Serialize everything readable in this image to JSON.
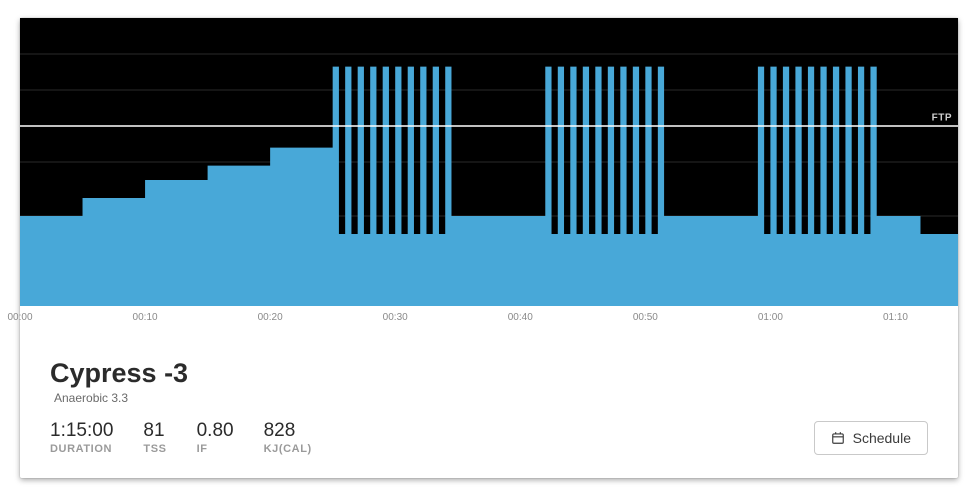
{
  "workout": {
    "title": "Cypress -3",
    "subtitle": "Anaerobic 3.3",
    "stats": [
      {
        "value": "1:15:00",
        "label": "DURATION"
      },
      {
        "value": "81",
        "label": "TSS"
      },
      {
        "value": "0.80",
        "label": "IF"
      },
      {
        "value": "828",
        "label": "KJ(CAL)"
      }
    ]
  },
  "actions": {
    "schedule_label": "Schedule"
  },
  "chart": {
    "type": "step-area-intervals",
    "duration_min": 75,
    "ftp_label": "FTP",
    "ftp_pct": 100,
    "y_range_pct": [
      0,
      160
    ],
    "gridlines_pct": [
      50,
      80,
      100,
      120,
      140
    ],
    "axis_ticks_min": [
      0,
      10,
      20,
      30,
      40,
      50,
      60,
      70
    ],
    "axis_tick_labels": [
      "00:00",
      "00:10",
      "00:20",
      "00:30",
      "00:40",
      "00:50",
      "01:00",
      "01:10"
    ],
    "colors": {
      "background": "#000000",
      "area_fill": "#48a8d8",
      "gridline": "#2a2a2a",
      "ftp_line": "#ffffff",
      "axis_text": "#8a8a8a",
      "ftp_text": "#cfcfcf"
    },
    "steps": [
      {
        "start_min": 0,
        "end_min": 5,
        "pct": 50
      },
      {
        "start_min": 5,
        "end_min": 10,
        "pct": 60
      },
      {
        "start_min": 10,
        "end_min": 15,
        "pct": 70
      },
      {
        "start_min": 15,
        "end_min": 20,
        "pct": 78
      },
      {
        "start_min": 20,
        "end_min": 25,
        "pct": 88
      },
      {
        "start_min": 25.0,
        "end_min": 25.5,
        "pct": 133
      },
      {
        "start_min": 25.5,
        "end_min": 26.0,
        "pct": 40
      },
      {
        "start_min": 26.0,
        "end_min": 26.5,
        "pct": 133
      },
      {
        "start_min": 26.5,
        "end_min": 27.0,
        "pct": 40
      },
      {
        "start_min": 27.0,
        "end_min": 27.5,
        "pct": 133
      },
      {
        "start_min": 27.5,
        "end_min": 28.0,
        "pct": 40
      },
      {
        "start_min": 28.0,
        "end_min": 28.5,
        "pct": 133
      },
      {
        "start_min": 28.5,
        "end_min": 29.0,
        "pct": 40
      },
      {
        "start_min": 29.0,
        "end_min": 29.5,
        "pct": 133
      },
      {
        "start_min": 29.5,
        "end_min": 30.0,
        "pct": 40
      },
      {
        "start_min": 30.0,
        "end_min": 30.5,
        "pct": 133
      },
      {
        "start_min": 30.5,
        "end_min": 31.0,
        "pct": 40
      },
      {
        "start_min": 31.0,
        "end_min": 31.5,
        "pct": 133
      },
      {
        "start_min": 31.5,
        "end_min": 32.0,
        "pct": 40
      },
      {
        "start_min": 32.0,
        "end_min": 32.5,
        "pct": 133
      },
      {
        "start_min": 32.5,
        "end_min": 33.0,
        "pct": 40
      },
      {
        "start_min": 33.0,
        "end_min": 33.5,
        "pct": 133
      },
      {
        "start_min": 33.5,
        "end_min": 34.0,
        "pct": 40
      },
      {
        "start_min": 34.0,
        "end_min": 34.5,
        "pct": 133
      },
      {
        "start_min": 34.5,
        "end_min": 42.0,
        "pct": 50
      },
      {
        "start_min": 42.0,
        "end_min": 42.5,
        "pct": 133
      },
      {
        "start_min": 42.5,
        "end_min": 43.0,
        "pct": 40
      },
      {
        "start_min": 43.0,
        "end_min": 43.5,
        "pct": 133
      },
      {
        "start_min": 43.5,
        "end_min": 44.0,
        "pct": 40
      },
      {
        "start_min": 44.0,
        "end_min": 44.5,
        "pct": 133
      },
      {
        "start_min": 44.5,
        "end_min": 45.0,
        "pct": 40
      },
      {
        "start_min": 45.0,
        "end_min": 45.5,
        "pct": 133
      },
      {
        "start_min": 45.5,
        "end_min": 46.0,
        "pct": 40
      },
      {
        "start_min": 46.0,
        "end_min": 46.5,
        "pct": 133
      },
      {
        "start_min": 46.5,
        "end_min": 47.0,
        "pct": 40
      },
      {
        "start_min": 47.0,
        "end_min": 47.5,
        "pct": 133
      },
      {
        "start_min": 47.5,
        "end_min": 48.0,
        "pct": 40
      },
      {
        "start_min": 48.0,
        "end_min": 48.5,
        "pct": 133
      },
      {
        "start_min": 48.5,
        "end_min": 49.0,
        "pct": 40
      },
      {
        "start_min": 49.0,
        "end_min": 49.5,
        "pct": 133
      },
      {
        "start_min": 49.5,
        "end_min": 50.0,
        "pct": 40
      },
      {
        "start_min": 50.0,
        "end_min": 50.5,
        "pct": 133
      },
      {
        "start_min": 50.5,
        "end_min": 51.0,
        "pct": 40
      },
      {
        "start_min": 51.0,
        "end_min": 51.5,
        "pct": 133
      },
      {
        "start_min": 51.5,
        "end_min": 59.0,
        "pct": 50
      },
      {
        "start_min": 59.0,
        "end_min": 59.5,
        "pct": 133
      },
      {
        "start_min": 59.5,
        "end_min": 60.0,
        "pct": 40
      },
      {
        "start_min": 60.0,
        "end_min": 60.5,
        "pct": 133
      },
      {
        "start_min": 60.5,
        "end_min": 61.0,
        "pct": 40
      },
      {
        "start_min": 61.0,
        "end_min": 61.5,
        "pct": 133
      },
      {
        "start_min": 61.5,
        "end_min": 62.0,
        "pct": 40
      },
      {
        "start_min": 62.0,
        "end_min": 62.5,
        "pct": 133
      },
      {
        "start_min": 62.5,
        "end_min": 63.0,
        "pct": 40
      },
      {
        "start_min": 63.0,
        "end_min": 63.5,
        "pct": 133
      },
      {
        "start_min": 63.5,
        "end_min": 64.0,
        "pct": 40
      },
      {
        "start_min": 64.0,
        "end_min": 64.5,
        "pct": 133
      },
      {
        "start_min": 64.5,
        "end_min": 65.0,
        "pct": 40
      },
      {
        "start_min": 65.0,
        "end_min": 65.5,
        "pct": 133
      },
      {
        "start_min": 65.5,
        "end_min": 66.0,
        "pct": 40
      },
      {
        "start_min": 66.0,
        "end_min": 66.5,
        "pct": 133
      },
      {
        "start_min": 66.5,
        "end_min": 67.0,
        "pct": 40
      },
      {
        "start_min": 67.0,
        "end_min": 67.5,
        "pct": 133
      },
      {
        "start_min": 67.5,
        "end_min": 68.0,
        "pct": 40
      },
      {
        "start_min": 68.0,
        "end_min": 68.5,
        "pct": 133
      },
      {
        "start_min": 68.5,
        "end_min": 72.0,
        "pct": 50
      },
      {
        "start_min": 72.0,
        "end_min": 75.0,
        "pct": 40
      }
    ]
  }
}
